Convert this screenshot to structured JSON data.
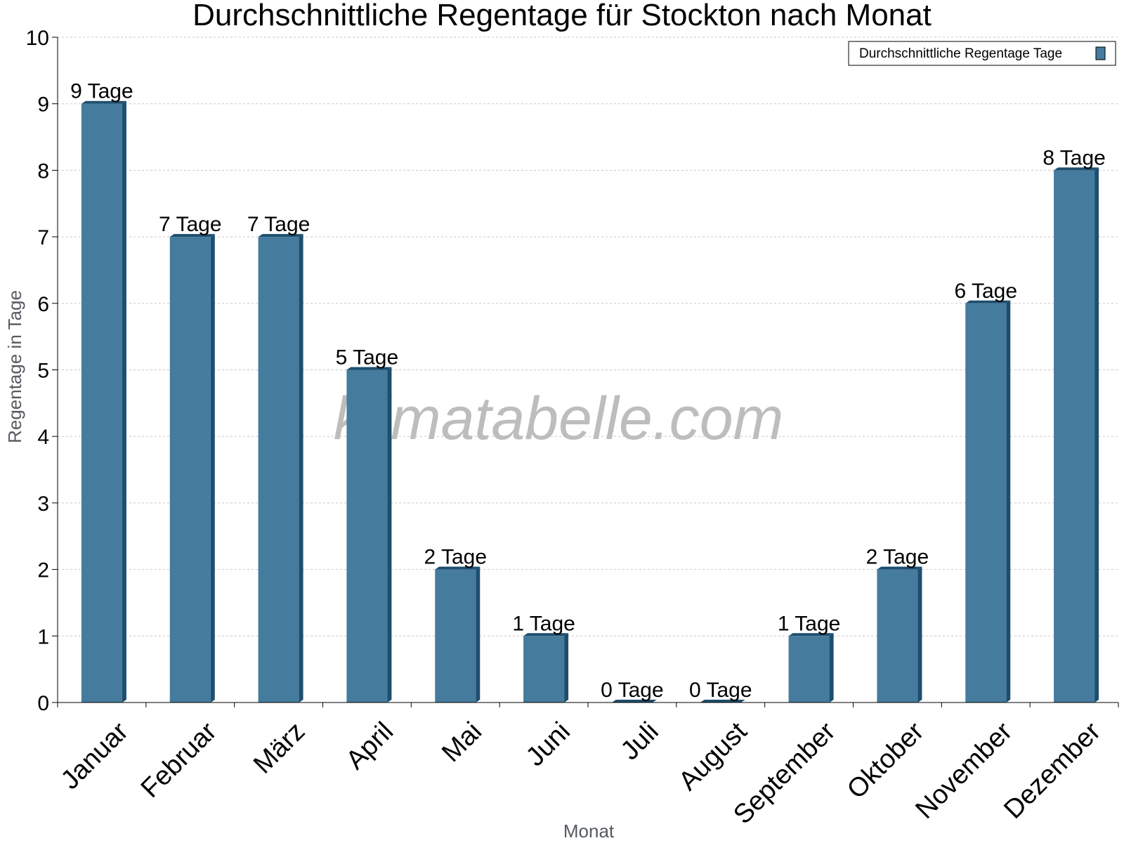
{
  "chart_data": {
    "type": "bar",
    "title": "Durchschnittliche Regentage für Stockton nach Monat",
    "xlabel": "Monat",
    "ylabel": "Regentage in Tage",
    "ylim": [
      0,
      10
    ],
    "yticks": [
      "0",
      "1",
      "2",
      "3",
      "4",
      "5",
      "6",
      "7",
      "8",
      "9",
      "10"
    ],
    "grid": true,
    "legend_position": "top-right",
    "categories": [
      "Januar",
      "Februar",
      "März",
      "April",
      "Mai",
      "Juni",
      "Juli",
      "August",
      "September",
      "Oktober",
      "November",
      "Dezember"
    ],
    "series": [
      {
        "name": "Durchschnittliche Regentage Tage",
        "values": [
          9,
          7,
          7,
          5,
          2,
          1,
          0,
          0,
          1,
          2,
          6,
          8
        ],
        "labels": [
          "9 Tage",
          "7 Tage",
          "7 Tage",
          "5 Tage",
          "2 Tage",
          "1 Tage",
          "0 Tage",
          "0 Tage",
          "1 Tage",
          "2 Tage",
          "6 Tage",
          "8 Tage"
        ],
        "color": "#457b9d",
        "side_color": "#1d4e6e"
      }
    ]
  },
  "watermark": "klimatabelle.com"
}
